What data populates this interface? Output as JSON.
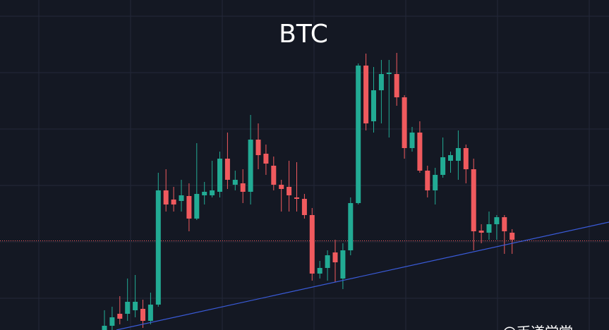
{
  "chart_data": {
    "type": "candlestick",
    "title": "BTC",
    "watermark": "@币道学堂",
    "ylim": [
      0,
      468
    ],
    "up_color": "#22ab94",
    "down_color": "#f05a5e",
    "open": [
      0,
      6,
      23,
      23,
      28,
      30,
      13,
      36,
      198,
      185,
      183,
      190,
      158,
      191,
      191,
      196,
      243,
      206,
      208,
      196,
      270,
      250,
      233,
      206,
      203,
      188,
      186,
      163,
      80,
      88,
      110,
      73,
      113,
      180,
      375,
      296,
      340,
      363,
      363,
      330,
      258,
      280,
      226,
      198,
      220,
      240,
      240,
      258,
      228,
      141,
      138,
      150,
      160,
      138
    ],
    "high": [
      28,
      33,
      48,
      73,
      78,
      43,
      53,
      223,
      228,
      203,
      213,
      208,
      265,
      210,
      240,
      253,
      280,
      226,
      228,
      305,
      293,
      263,
      246,
      213,
      240,
      238,
      193,
      173,
      98,
      113,
      128,
      123,
      188,
      378,
      392,
      373,
      383,
      383,
      393,
      333,
      288,
      296,
      233,
      230,
      273,
      253,
      283,
      263,
      243,
      150,
      168,
      163,
      163,
      143
    ],
    "low": [
      0,
      0,
      8,
      13,
      18,
      3,
      8,
      33,
      168,
      168,
      168,
      140,
      156,
      178,
      188,
      188,
      200,
      198,
      180,
      178,
      228,
      220,
      198,
      168,
      168,
      168,
      158,
      70,
      73,
      70,
      68,
      58,
      106,
      178,
      283,
      280,
      293,
      273,
      318,
      243,
      253,
      223,
      188,
      178,
      216,
      223,
      213,
      208,
      113,
      123,
      128,
      128,
      108,
      108
    ],
    "close": [
      6,
      18,
      16,
      40,
      40,
      13,
      36,
      198,
      178,
      178,
      191,
      158,
      193,
      196,
      198,
      243,
      213,
      213,
      196,
      270,
      248,
      236,
      206,
      200,
      191,
      186,
      163,
      80,
      88,
      106,
      96,
      113,
      180,
      375,
      293,
      340,
      363,
      365,
      330,
      258,
      280,
      226,
      198,
      220,
      245,
      248,
      258,
      228,
      140,
      138,
      150,
      160,
      140,
      128
    ]
  }
}
